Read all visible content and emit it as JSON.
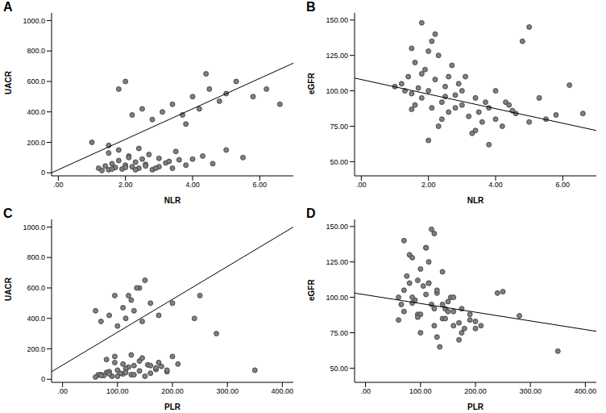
{
  "chart_data": [
    {
      "type": "scatter",
      "title": "A",
      "x_label": "NLR",
      "y_label": "UACR",
      "grid": false,
      "xlim": [
        -0.2,
        7.0
      ],
      "xticks": [
        {
          "value": 0,
          "label": ".00"
        },
        {
          "value": 2,
          "label": "2.00"
        },
        {
          "value": 4,
          "label": "4.00"
        },
        {
          "value": 6,
          "label": "6.00"
        }
      ],
      "ylim": [
        -20,
        1050
      ],
      "yticks": [
        0,
        {
          "value": 200,
          "label": "200.0"
        },
        {
          "value": 400,
          "label": "400.0"
        },
        {
          "value": 600,
          "label": "600.0"
        },
        {
          "value": 800,
          "label": "800.0"
        },
        {
          "value": 1000,
          "label": "1000.0"
        }
      ],
      "series": [
        {
          "type": "scatter",
          "color": "#808080",
          "marker": "circle",
          "x": [
            1.2,
            1.4,
            1.5,
            1.6,
            1.7,
            1.8,
            1.9,
            2.0,
            2.1,
            2.2,
            2.3,
            2.4,
            2.5,
            2.6,
            2.8,
            3.0,
            3.2,
            3.4,
            3.6,
            3.8,
            1.5,
            1.8,
            2.1,
            2.4,
            2.7,
            3.0,
            3.3,
            1.3,
            1.6,
            2.0,
            2.3,
            2.6,
            2.9,
            3.5,
            4.0,
            4.3,
            4.6,
            5.0,
            5.5,
            2.2,
            2.5,
            2.8,
            3.1,
            3.4,
            3.7,
            4.0,
            4.2,
            4.5,
            4.8,
            5.0,
            5.3,
            5.8,
            6.2,
            6.6,
            1.8,
            2.0,
            1.0,
            1.5,
            3.8,
            4.4
          ],
          "y": [
            30,
            45,
            20,
            60,
            35,
            80,
            25,
            50,
            110,
            40,
            70,
            30,
            90,
            55,
            20,
            40,
            65,
            30,
            85,
            50,
            130,
            150,
            100,
            160,
            120,
            95,
            75,
            15,
            25,
            35,
            20,
            45,
            30,
            140,
            90,
            110,
            60,
            150,
            100,
            380,
            420,
            350,
            400,
            450,
            380,
            500,
            420,
            550,
            470,
            520,
            600,
            500,
            550,
            450,
            550,
            600,
            200,
            180,
            320,
            650
          ]
        },
        {
          "type": "line",
          "color": "#000000",
          "x": [
            -0.2,
            7.0
          ],
          "y": [
            0,
            720
          ]
        }
      ]
    },
    {
      "type": "scatter",
      "title": "B",
      "x_label": "NLR",
      "y_label": "eGFR",
      "grid": false,
      "xlim": [
        -0.2,
        7.0
      ],
      "xticks": [
        {
          "value": 0,
          "label": ".00"
        },
        {
          "value": 2,
          "label": "2.00"
        },
        {
          "value": 4,
          "label": "4.00"
        },
        {
          "value": 6,
          "label": "6.00"
        }
      ],
      "ylim": [
        40,
        155
      ],
      "yticks": [
        {
          "value": 50,
          "label": "50.00"
        },
        {
          "value": 75,
          "label": "75.00"
        },
        {
          "value": 100,
          "label": "100.00"
        },
        {
          "value": 125,
          "label": "125.00"
        },
        {
          "value": 150,
          "label": "150.00"
        }
      ],
      "series": [
        {
          "type": "scatter",
          "color": "#808080",
          "marker": "circle",
          "x": [
            1.2,
            1.4,
            1.5,
            1.6,
            1.7,
            1.8,
            1.9,
            2.0,
            2.1,
            2.2,
            2.3,
            2.4,
            2.5,
            2.6,
            2.8,
            3.0,
            3.2,
            3.4,
            3.6,
            3.8,
            1.5,
            1.8,
            2.1,
            2.4,
            2.7,
            3.0,
            3.3,
            1.3,
            1.6,
            2.0,
            2.3,
            2.6,
            2.9,
            3.5,
            4.0,
            4.3,
            4.6,
            5.0,
            5.5,
            2.2,
            2.5,
            2.8,
            3.1,
            3.4,
            3.7,
            4.0,
            4.2,
            4.5,
            4.8,
            5.0,
            5.3,
            5.8,
            6.2,
            6.6,
            1.8,
            2.0,
            1.0,
            1.5,
            3.8,
            4.4
          ],
          "y": [
            105,
            110,
            98,
            120,
            102,
            95,
            115,
            100,
            88,
            108,
            125,
            92,
            103,
            85,
            97,
            90,
            82,
            95,
            78,
            88,
            130,
            112,
            135,
            80,
            118,
            100,
            70,
            100,
            90,
            128,
            75,
            110,
            105,
            85,
            80,
            92,
            84,
            78,
            80,
            140,
            96,
            88,
            110,
            72,
            92,
            100,
            75,
            86,
            135,
            145,
            95,
            83,
            104,
            84,
            148,
            65,
            103,
            87,
            62,
            90
          ]
        },
        {
          "type": "line",
          "color": "#000000",
          "x": [
            -0.2,
            7.0
          ],
          "y": [
            109,
            72
          ]
        }
      ]
    },
    {
      "type": "scatter",
      "title": "C",
      "x_label": "PLR",
      "y_label": "UACR",
      "grid": false,
      "xlim": [
        -20,
        420
      ],
      "xticks": [
        {
          "value": 0,
          "label": ".00"
        },
        {
          "value": 100,
          "label": "100.00"
        },
        {
          "value": 200,
          "label": "200.00"
        },
        {
          "value": 300,
          "label": "300.00"
        },
        {
          "value": 400,
          "label": "400.00"
        }
      ],
      "ylim": [
        -20,
        1050
      ],
      "yticks": [
        0,
        {
          "value": 200,
          "label": "200.0"
        },
        {
          "value": 400,
          "label": "400.0"
        },
        {
          "value": 600,
          "label": "600.0"
        },
        {
          "value": 800,
          "label": "800.0"
        },
        {
          "value": 1000,
          "label": "1000.0"
        }
      ],
      "series": [
        {
          "type": "scatter",
          "color": "#808080",
          "marker": "circle",
          "x": [
            70,
            80,
            90,
            100,
            110,
            120,
            75,
            85,
            95,
            105,
            115,
            125,
            130,
            140,
            150,
            160,
            170,
            65,
            180,
            190,
            80,
            95,
            110,
            125,
            140,
            155,
            170,
            60,
            70,
            85,
            100,
            115,
            130,
            145,
            160,
            175,
            190,
            200,
            210,
            70,
            85,
            100,
            115,
            130,
            145,
            160,
            175,
            95,
            110,
            125,
            140,
            200,
            250,
            60,
            120,
            135,
            240,
            280,
            350,
            150
          ],
          "y": [
            30,
            45,
            20,
            60,
            35,
            80,
            25,
            50,
            110,
            40,
            70,
            30,
            90,
            55,
            20,
            40,
            65,
            30,
            85,
            50,
            130,
            150,
            100,
            160,
            120,
            95,
            75,
            15,
            25,
            35,
            20,
            45,
            30,
            140,
            90,
            110,
            60,
            150,
            100,
            380,
            420,
            350,
            400,
            450,
            380,
            500,
            420,
            550,
            470,
            520,
            600,
            500,
            550,
            450,
            550,
            600,
            400,
            300,
            60,
            650
          ]
        },
        {
          "type": "line",
          "color": "#000000",
          "x": [
            -20,
            420
          ],
          "y": [
            50,
            1000
          ]
        }
      ]
    },
    {
      "type": "scatter",
      "title": "D",
      "x_label": "PLR",
      "y_label": "eGFR",
      "grid": false,
      "xlim": [
        -20,
        420
      ],
      "xticks": [
        {
          "value": 0,
          "label": ".00"
        },
        {
          "value": 100,
          "label": "100.00"
        },
        {
          "value": 200,
          "label": "200.00"
        },
        {
          "value": 300,
          "label": "300.00"
        },
        {
          "value": 400,
          "label": "400.00"
        }
      ],
      "ylim": [
        40,
        155
      ],
      "yticks": [
        {
          "value": 50,
          "label": "50.00"
        },
        {
          "value": 75,
          "label": "75.00"
        },
        {
          "value": 100,
          "label": "100.00"
        },
        {
          "value": 125,
          "label": "125.00"
        },
        {
          "value": 150,
          "label": "150.00"
        }
      ],
      "series": [
        {
          "type": "scatter",
          "color": "#808080",
          "marker": "circle",
          "x": [
            70,
            80,
            90,
            100,
            110,
            120,
            75,
            85,
            95,
            105,
            115,
            125,
            130,
            140,
            150,
            160,
            170,
            65,
            180,
            190,
            80,
            95,
            110,
            125,
            140,
            155,
            170,
            60,
            70,
            85,
            100,
            115,
            130,
            145,
            160,
            175,
            190,
            200,
            210,
            70,
            85,
            100,
            115,
            130,
            145,
            160,
            175,
            95,
            110,
            125,
            140,
            200,
            250,
            60,
            120,
            135,
            240,
            280,
            350,
            150
          ],
          "y": [
            105,
            110,
            98,
            120,
            102,
            95,
            115,
            100,
            88,
            108,
            125,
            92,
            103,
            85,
            97,
            90,
            82,
            95,
            78,
            88,
            130,
            112,
            135,
            80,
            118,
            100,
            70,
            100,
            90,
            128,
            75,
            110,
            105,
            85,
            80,
            92,
            84,
            78,
            80,
            140,
            96,
            88,
            110,
            72,
            92,
            100,
            75,
            86,
            135,
            145,
            95,
            83,
            104,
            84,
            148,
            65,
            103,
            87,
            62,
            90
          ]
        },
        {
          "type": "line",
          "color": "#000000",
          "x": [
            -20,
            420
          ],
          "y": [
            103,
            76
          ]
        }
      ]
    }
  ]
}
